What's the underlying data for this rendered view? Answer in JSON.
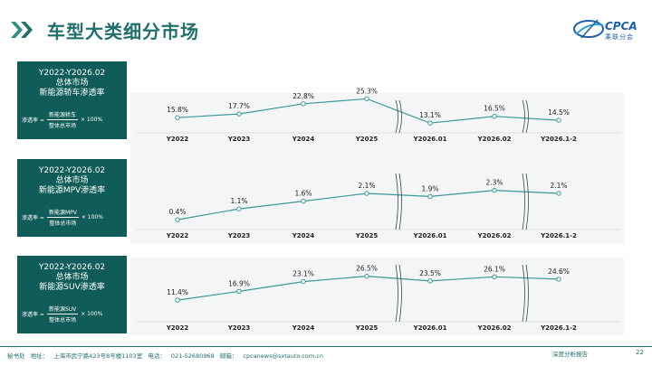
{
  "header": {
    "title": "车型大类细分市场",
    "logo_text": "CPCA",
    "logo_sub": "乘联分会"
  },
  "panels": [
    {
      "title_lines": [
        "Y2022-Y2026.02",
        "总体市场",
        "新能源轿车渗透率"
      ],
      "formula": {
        "lhs": "渗透率 =",
        "numerator": "新能源轿车",
        "denominator": "整体总市场",
        "rhs": "× 100%"
      }
    },
    {
      "title_lines": [
        "Y2022-Y2026.02",
        "总体市场",
        "新能源MPV渗透率"
      ],
      "formula": {
        "lhs": "渗透率 =",
        "numerator": "新能源MPV",
        "denominator": "整体总市场",
        "rhs": "× 100%"
      }
    },
    {
      "title_lines": [
        "Y2022-Y2026.02",
        "总体市场",
        "新能源SUV渗透率"
      ],
      "formula": {
        "lhs": "渗透率 =",
        "numerator": "新能源SUV",
        "denominator": "整体总市场",
        "rhs": "× 100%"
      }
    }
  ],
  "chart_data": [
    {
      "type": "line",
      "categories": [
        "Y2022",
        "Y2023",
        "Y2024",
        "Y2025",
        "Y2026.01",
        "Y2026.02",
        "Y2026.1-2"
      ],
      "values": [
        15.8,
        17.7,
        22.8,
        25.3,
        13.1,
        16.5,
        14.5
      ],
      "labels": [
        "15.8%",
        "17.7%",
        "22.8%",
        "25.3%",
        "13.1%",
        "16.5%",
        "14.5%"
      ],
      "ylim": [
        0,
        50
      ]
    },
    {
      "type": "line",
      "categories": [
        "Y2022",
        "Y2023",
        "Y2024",
        "Y2025",
        "Y2026.01",
        "Y2026.02",
        "Y2026.1-2"
      ],
      "values": [
        0.4,
        1.1,
        1.6,
        2.1,
        1.9,
        2.3,
        2.1
      ],
      "labels": [
        "0.4%",
        "1.1%",
        "1.6%",
        "2.1%",
        "1.9%",
        "2.3%",
        "2.1%"
      ],
      "ylim": [
        0,
        3.5
      ]
    },
    {
      "type": "line",
      "categories": [
        "Y2022",
        "Y2023",
        "Y2024",
        "Y2025",
        "Y2026.01",
        "Y2026.02",
        "Y2026.1-2"
      ],
      "values": [
        11.4,
        16.9,
        23.1,
        26.5,
        23.5,
        26.1,
        24.6
      ],
      "labels": [
        "11.4%",
        "16.9%",
        "23.1%",
        "26.5%",
        "23.5%",
        "26.1%",
        "24.6%"
      ],
      "ylim": [
        0,
        40
      ]
    }
  ],
  "colors": {
    "brand": "#1f6f6a",
    "panel": "#0f5c58",
    "line": "#3a9a98",
    "marker_fill": "#ffffff"
  },
  "footer": {
    "label1": "秘书处",
    "label2": "地址：",
    "address": "上海市武宁路423号8号楼1103室",
    "phone_label": "电话：",
    "phone": "021-52680968",
    "email_label": "邮箱：",
    "email": "cpcanews@sxtauto.com.cn",
    "report": "深度分析报告",
    "page": "22"
  }
}
